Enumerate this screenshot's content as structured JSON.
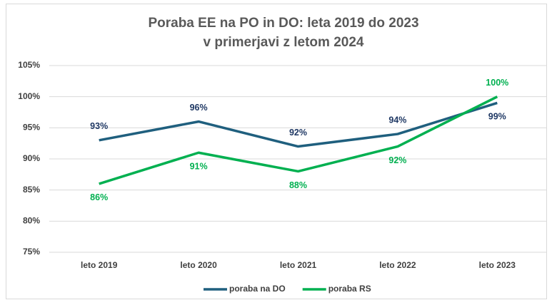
{
  "chart_data": {
    "type": "line",
    "title": [
      "Poraba EE na PO in DO: leta 2019 do 2023",
      "v primerjavi z letom 2024"
    ],
    "categories": [
      "leto 2019",
      "leto 2020",
      "leto 2021",
      "leto 2022",
      "leto 2023"
    ],
    "series": [
      {
        "name": "poraba na DO",
        "color": "#1f5f7e",
        "label_color": "#1f3864",
        "values": [
          93,
          96,
          92,
          94,
          99
        ],
        "value_labels": [
          "93%",
          "96%",
          "92%",
          "94%",
          "99%"
        ]
      },
      {
        "name": "poraba RS",
        "color": "#00b050",
        "label_color": "#00b050",
        "values": [
          86,
          91,
          88,
          92,
          100
        ],
        "value_labels": [
          "86%",
          "91%",
          "88%",
          "92%",
          "100%"
        ]
      }
    ],
    "ylim": [
      75,
      105
    ],
    "yticks": [
      {
        "value": 75,
        "label": "75%"
      },
      {
        "value": 80,
        "label": "80%"
      },
      {
        "value": 85,
        "label": "85%"
      },
      {
        "value": 90,
        "label": "90%"
      },
      {
        "value": 95,
        "label": "95%"
      },
      {
        "value": 100,
        "label": "100%"
      },
      {
        "value": 105,
        "label": "105%"
      }
    ],
    "grid": true,
    "legend": "bottom"
  }
}
